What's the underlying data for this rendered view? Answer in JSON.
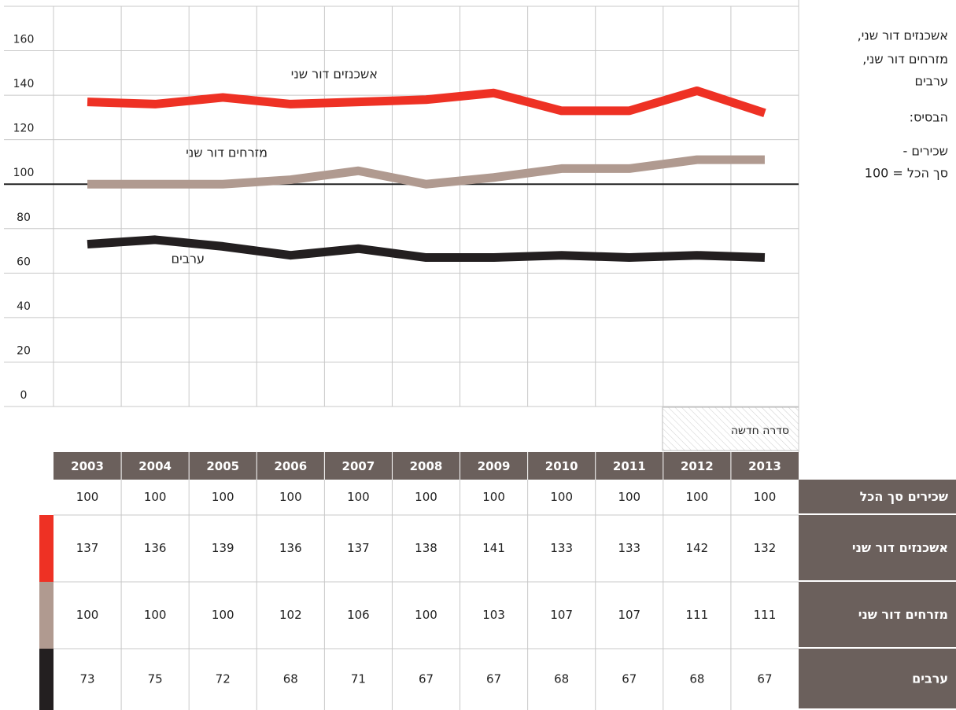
{
  "chart_data": {
    "type": "line",
    "title": [
      "אשכנזים דור שני,",
      "מזרחים דור שני,",
      "ערבים"
    ],
    "base_label": "הבסיס:",
    "base_note": [
      "שכירים -",
      "סך הכל = 100"
    ],
    "new_series_label": "סדרה  חדשה",
    "categories": [
      "2003",
      "2004",
      "2005",
      "2006",
      "2007",
      "2008",
      "2009",
      "2010",
      "2011",
      "2012",
      "2013"
    ],
    "baseline": {
      "name": "שכירים סך הכל",
      "values": [
        100,
        100,
        100,
        100,
        100,
        100,
        100,
        100,
        100,
        100,
        100
      ]
    },
    "series": [
      {
        "name": "אשכנזים דור שני",
        "color": "#ee3124",
        "values": [
          137,
          136,
          139,
          136,
          137,
          138,
          141,
          133,
          133,
          142,
          132
        ]
      },
      {
        "name": "מזרחים דור שני",
        "color": "#b09a90",
        "values": [
          100,
          100,
          100,
          102,
          106,
          100,
          103,
          107,
          107,
          111,
          111
        ]
      },
      {
        "name": "ערבים",
        "color": "#231f20",
        "values": [
          73,
          75,
          72,
          68,
          71,
          67,
          67,
          68,
          67,
          68,
          67
        ]
      }
    ],
    "ylim": [
      0,
      180
    ],
    "yticks": [
      0,
      20,
      40,
      60,
      80,
      100,
      120,
      140,
      160
    ],
    "grid": true
  }
}
